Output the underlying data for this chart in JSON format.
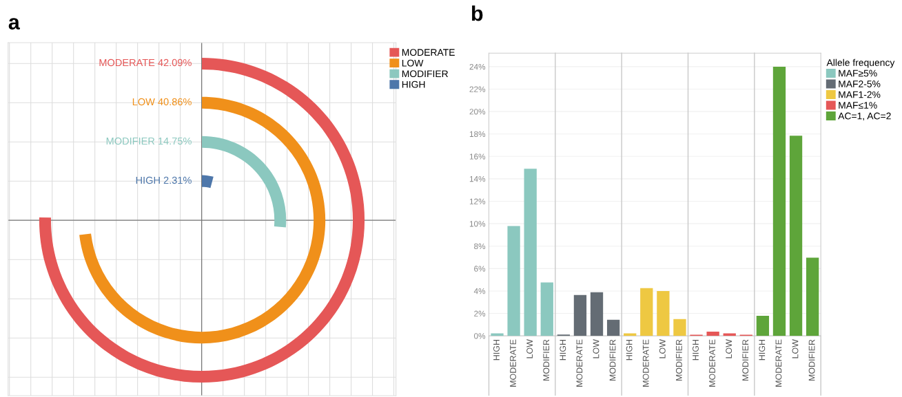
{
  "chart_data": [
    {
      "type": "other",
      "title": "a",
      "legend": "top right",
      "series": [
        {
          "name": "MODERATE",
          "color": "#e55757",
          "values": [
            42.09
          ],
          "value_labels": [
            "42.09%"
          ]
        },
        {
          "name": "LOW",
          "color": "#f0901a",
          "values": [
            40.86
          ],
          "value_labels": [
            "40.86%"
          ]
        },
        {
          "name": "MODIFIER",
          "color": "#8bc8bf",
          "values": [
            14.75
          ],
          "value_labels": [
            "14.75%"
          ]
        },
        {
          "name": "HIGH",
          "color": "#4e77aa",
          "values": [
            2.31
          ],
          "value_labels": [
            "2.31%"
          ]
        }
      ]
    },
    {
      "type": "bar",
      "title": "b",
      "legend_title": "Allele frequency",
      "legend": "top right",
      "grid": "y",
      "categories": [
        "HIGH",
        "MODERATE",
        "LOW",
        "MODIFIER",
        "HIGH",
        "MODERATE",
        "LOW",
        "MODIFIER",
        "HIGH",
        "MODERATE",
        "LOW",
        "MODIFIER",
        "HIGH",
        "MODERATE",
        "LOW",
        "MODIFIER",
        "HIGH",
        "MODERATE",
        "LOW",
        "MODIFIER"
      ],
      "ylim": [
        0,
        25.2
      ],
      "yticks": [
        {
          "value": 0,
          "label": "0%"
        },
        {
          "value": 2,
          "label": "2%"
        },
        {
          "value": 4,
          "label": "4%"
        },
        {
          "value": 6,
          "label": "6%"
        },
        {
          "value": 8,
          "label": "8%"
        },
        {
          "value": 10,
          "label": "10%"
        },
        {
          "value": 12,
          "label": "12%"
        },
        {
          "value": 14,
          "label": "14%"
        },
        {
          "value": 16,
          "label": "16%"
        },
        {
          "value": 18,
          "label": "18%"
        },
        {
          "value": 20,
          "label": "20%"
        },
        {
          "value": 22,
          "label": "22%"
        },
        {
          "value": 24,
          "label": "24%"
        }
      ],
      "series": [
        {
          "name": "MAF≥5%",
          "color": "#8bc8bf",
          "values": [
            0.22,
            9.8,
            14.9,
            4.76,
            null,
            null,
            null,
            null,
            null,
            null,
            null,
            null,
            null,
            null,
            null,
            null,
            null,
            null,
            null,
            null
          ]
        },
        {
          "name": "MAF2-5%",
          "color": "#646c74",
          "values": [
            null,
            null,
            null,
            null,
            0.12,
            3.64,
            3.89,
            1.43,
            null,
            null,
            null,
            null,
            null,
            null,
            null,
            null,
            null,
            null,
            null,
            null
          ]
        },
        {
          "name": "MAF1-2%",
          "color": "#eec842",
          "values": [
            null,
            null,
            null,
            null,
            null,
            null,
            null,
            null,
            0.22,
            4.25,
            4.0,
            1.5,
            null,
            null,
            null,
            null,
            null,
            null,
            null,
            null
          ]
        },
        {
          "name": "MAF≤1%",
          "color": "#e55757",
          "values": [
            null,
            null,
            null,
            null,
            null,
            null,
            null,
            null,
            null,
            null,
            null,
            null,
            0.1,
            0.37,
            0.22,
            0.1,
            null,
            null,
            null,
            null
          ]
        },
        {
          "name": "AC=1, AC=2",
          "color": "#5ea53a",
          "values": [
            null,
            null,
            null,
            null,
            null,
            null,
            null,
            null,
            null,
            null,
            null,
            null,
            null,
            null,
            null,
            null,
            1.78,
            24.0,
            17.85,
            6.97
          ]
        }
      ]
    }
  ]
}
